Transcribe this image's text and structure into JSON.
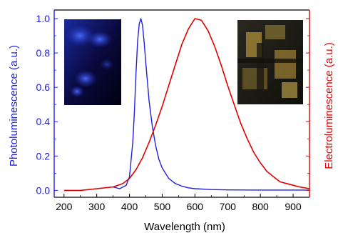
{
  "chart_data": {
    "type": "line",
    "xlabel": "Wavelength (nm)",
    "ylabel_left": "Photoluminescence (a.u.)",
    "ylabel_right": "Electroluminescence (a.u.)",
    "xlim": [
      170,
      950
    ],
    "ylim": [
      -0.04,
      1.05
    ],
    "x_ticks": [
      200,
      300,
      400,
      500,
      600,
      700,
      800,
      900
    ],
    "x_tick_labels": [
      "200",
      "300",
      "400",
      "500",
      "600",
      "700",
      "800",
      "900"
    ],
    "y_ticks": [
      0.0,
      0.2,
      0.4,
      0.6,
      0.8,
      1.0
    ],
    "y_tick_labels": [
      "0.0",
      "0.2",
      "0.4",
      "0.6",
      "0.8",
      "1.0"
    ],
    "grid": false,
    "legend": "none",
    "colors": {
      "pl": "#2020e0",
      "el": "#e00000",
      "axis": "#000000"
    },
    "series": [
      {
        "axis": "left",
        "x": [
          350,
          370,
          390,
          400,
          410,
          415,
          420,
          425,
          430,
          435,
          440,
          445,
          450,
          460,
          470,
          480,
          490,
          500,
          520,
          540,
          560,
          580,
          600,
          650,
          700,
          800,
          950
        ],
        "values": [
          0.02,
          0.01,
          0.03,
          0.08,
          0.28,
          0.45,
          0.68,
          0.87,
          0.97,
          1.0,
          0.96,
          0.86,
          0.74,
          0.52,
          0.37,
          0.26,
          0.18,
          0.13,
          0.07,
          0.04,
          0.025,
          0.015,
          0.01,
          0.005,
          0.003,
          0.002,
          0.002
        ]
      },
      {
        "axis": "right",
        "x": [
          200,
          250,
          300,
          350,
          380,
          400,
          420,
          440,
          460,
          480,
          500,
          520,
          540,
          560,
          580,
          600,
          620,
          640,
          660,
          680,
          700,
          720,
          740,
          760,
          780,
          800,
          820,
          840,
          860,
          880,
          900,
          920,
          950
        ],
        "values": [
          0.0,
          0.0,
          0.01,
          0.02,
          0.04,
          0.07,
          0.12,
          0.19,
          0.28,
          0.38,
          0.49,
          0.61,
          0.73,
          0.85,
          0.94,
          1.0,
          0.99,
          0.93,
          0.84,
          0.73,
          0.61,
          0.5,
          0.39,
          0.3,
          0.22,
          0.16,
          0.11,
          0.08,
          0.05,
          0.04,
          0.03,
          0.02,
          0.01
        ]
      }
    ]
  },
  "insets": [
    {
      "name": "pl-photo-inset",
      "description_colors": [
        "#0a0a30",
        "#2a4cff"
      ]
    },
    {
      "name": "el-photo-inset",
      "description_colors": [
        "#1a1a14",
        "#c8a040"
      ]
    }
  ]
}
